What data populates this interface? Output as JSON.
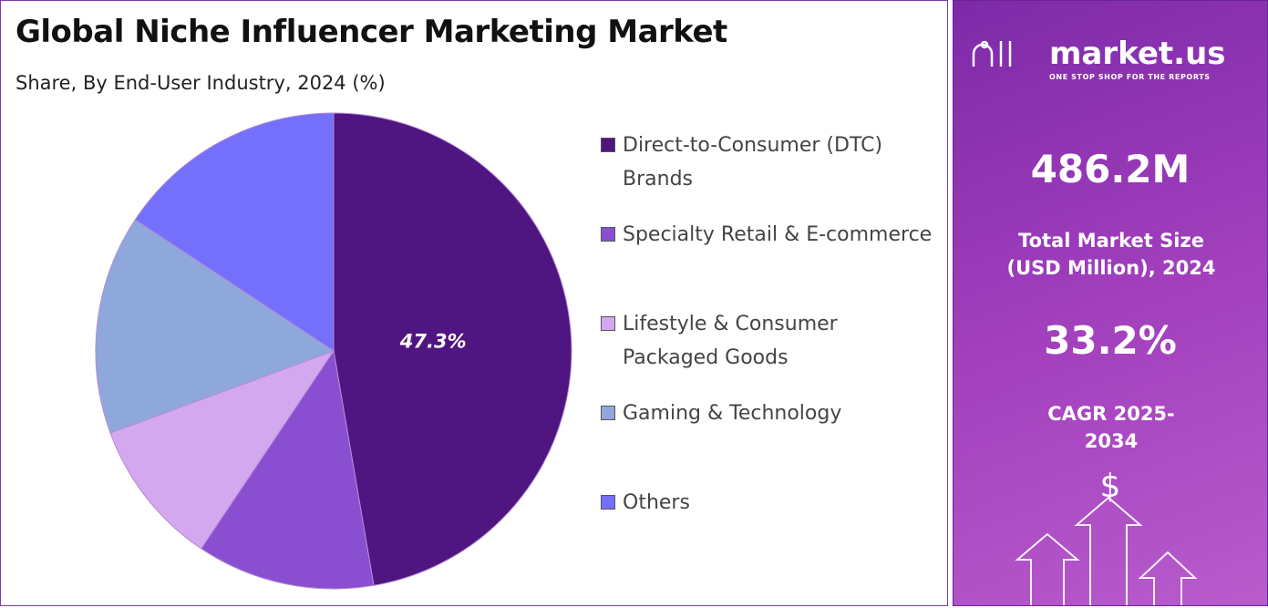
{
  "chart_data": {
    "type": "pie",
    "title": "Global Niche Influencer Marketing Market",
    "subtitle": "Share, By End-User Industry, 2024 (%)",
    "categories": [
      "Direct-to-Consumer (DTC) Brands",
      "Specialty Retail & E-commerce",
      "Lifestyle & Consumer Packaged Goods",
      "Gaming & Technology",
      "Others"
    ],
    "values": [
      47.3,
      12.1,
      10.0,
      14.9,
      15.7
    ],
    "value_labels": [
      "47.3%",
      null,
      null,
      null,
      null
    ],
    "colors": [
      "#4f1580",
      "#8a4fd0",
      "#d4a8ee",
      "#8fa8dc",
      "#7470fc"
    ],
    "legend": "right"
  },
  "panel": {
    "brand": "market.us",
    "tagline": "ONE STOP SHOP FOR THE REPORTS",
    "market_size": "486.2M",
    "market_size_label": "Total Market Size (USD Million), 2024",
    "cagr": "33.2%",
    "cagr_label": "CAGR 2025-2034",
    "icon": "$"
  }
}
